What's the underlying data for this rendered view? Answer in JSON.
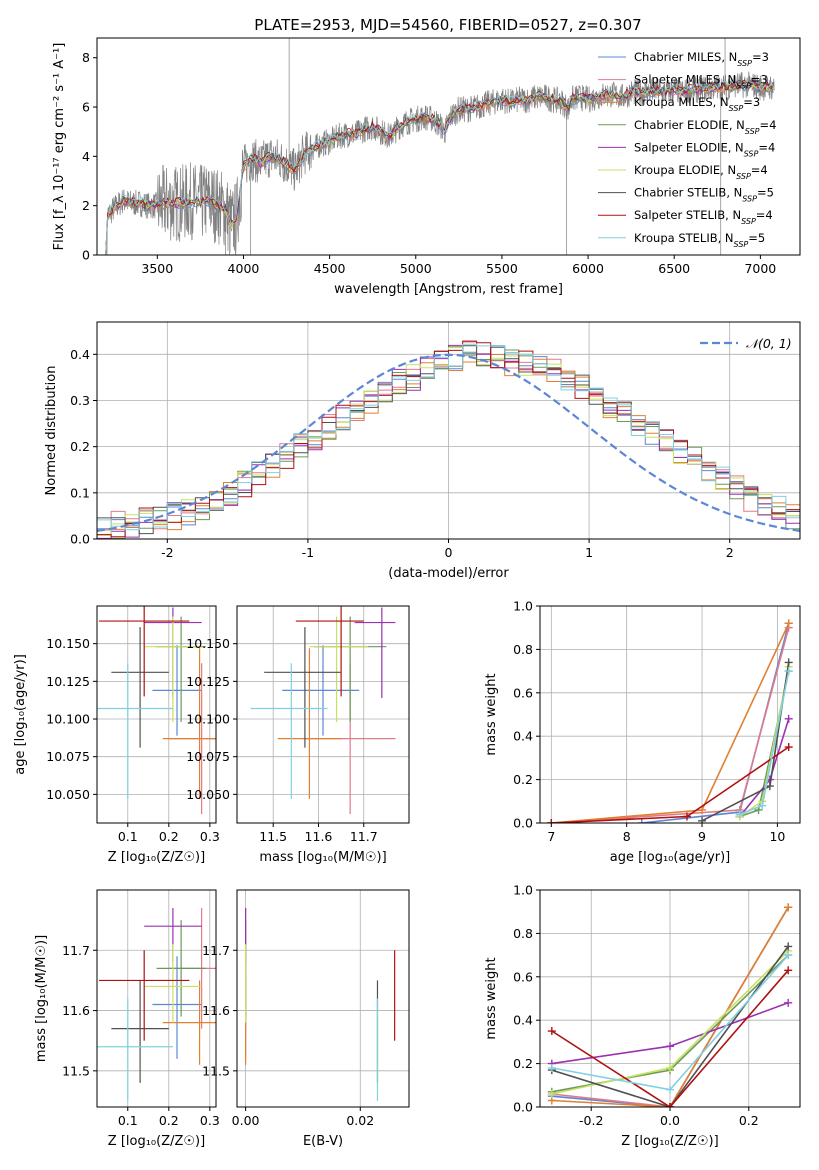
{
  "title": "PLATE=2953, MJD=54560, FIBERID=0527, z=0.307",
  "colors": {
    "Chabrier MILES": "#5b87d6",
    "Salpeter MILES": "#e07a8a",
    "Kroupa MILES": "#e08030",
    "Chabrier ELODIE": "#6a9a5a",
    "Salpeter ELODIE": "#9b30b0",
    "Kroupa ELODIE": "#c8e060",
    "Chabrier STELIB": "#505050",
    "Salpeter STELIB": "#b01010",
    "Kroupa STELIB": "#80d0e0",
    "data": "#808080",
    "normal": "#5b87d6"
  },
  "chart_data": [
    {
      "id": "spectrum",
      "type": "line",
      "xlabel": "wavelength [Angstrom, rest frame]",
      "ylabel": "Flux [f_λ 10⁻¹⁷ erg cm⁻² s⁻¹ A⁻¹]",
      "xlim": [
        3150,
        7230
      ],
      "ylim": [
        0,
        8.8
      ],
      "xticks": [
        3500,
        4000,
        4500,
        5000,
        5500,
        6000,
        6500,
        7000
      ],
      "yticks": [
        0,
        2,
        4,
        6,
        8
      ],
      "continuum": [
        [
          3200,
          0
        ],
        [
          3210,
          1.6
        ],
        [
          3250,
          1.9
        ],
        [
          3300,
          2.2
        ],
        [
          3350,
          2.1
        ],
        [
          3400,
          2.1
        ],
        [
          3450,
          2.0
        ],
        [
          3500,
          2.0
        ],
        [
          3550,
          2.1
        ],
        [
          3600,
          2.1
        ],
        [
          3650,
          2.1
        ],
        [
          3700,
          2.2
        ],
        [
          3750,
          2.1
        ],
        [
          3800,
          2.2
        ],
        [
          3850,
          2.0
        ],
        [
          3900,
          1.8
        ],
        [
          3930,
          1.2
        ],
        [
          3960,
          1.5
        ],
        [
          4000,
          3.6
        ],
        [
          4050,
          3.9
        ],
        [
          4100,
          3.7
        ],
        [
          4150,
          4.0
        ],
        [
          4200,
          3.9
        ],
        [
          4250,
          3.7
        ],
        [
          4300,
          3.4
        ],
        [
          4350,
          4.1
        ],
        [
          4400,
          4.3
        ],
        [
          4450,
          4.5
        ],
        [
          4500,
          4.6
        ],
        [
          4550,
          4.8
        ],
        [
          4600,
          4.9
        ],
        [
          4650,
          4.9
        ],
        [
          4700,
          5.1
        ],
        [
          4750,
          5.2
        ],
        [
          4800,
          5.0
        ],
        [
          4850,
          4.8
        ],
        [
          4900,
          5.2
        ],
        [
          4950,
          5.4
        ],
        [
          5000,
          5.5
        ],
        [
          5050,
          5.6
        ],
        [
          5100,
          5.5
        ],
        [
          5150,
          5.2
        ],
        [
          5170,
          5.0
        ],
        [
          5200,
          5.6
        ],
        [
          5250,
          5.9
        ],
        [
          5300,
          5.9
        ],
        [
          5350,
          6.0
        ],
        [
          5400,
          6.1
        ],
        [
          5450,
          6.2
        ],
        [
          5500,
          6.3
        ],
        [
          5550,
          6.2
        ],
        [
          5600,
          6.3
        ],
        [
          5650,
          6.3
        ],
        [
          5700,
          6.4
        ],
        [
          5750,
          6.4
        ],
        [
          5800,
          6.3
        ],
        [
          5850,
          6.2
        ],
        [
          5890,
          5.9
        ],
        [
          5900,
          6.3
        ],
        [
          5950,
          6.4
        ],
        [
          6000,
          6.3
        ],
        [
          6050,
          6.4
        ],
        [
          6100,
          6.5
        ],
        [
          6150,
          6.5
        ],
        [
          6200,
          6.4
        ],
        [
          6250,
          6.6
        ],
        [
          6300,
          6.6
        ],
        [
          6350,
          6.6
        ],
        [
          6400,
          6.7
        ],
        [
          6450,
          6.6
        ],
        [
          6500,
          6.7
        ],
        [
          6550,
          6.6
        ],
        [
          6600,
          6.7
        ],
        [
          6650,
          6.7
        ],
        [
          6700,
          6.8
        ],
        [
          6750,
          6.8
        ],
        [
          6800,
          6.8
        ],
        [
          6850,
          6.9
        ],
        [
          6900,
          6.9
        ],
        [
          6950,
          6.9
        ],
        [
          7000,
          6.8
        ],
        [
          7050,
          6.8
        ]
      ],
      "legend": [
        "Chabrier MILES, N_SSP=3",
        "Salpeter MILES, N_SSP=3",
        "Kroupa MILES, N_SSP=3",
        "Chabrier ELODIE, N_SSP=4",
        "Salpeter ELODIE, N_SSP=4",
        "Kroupa ELODIE, N_SSP=4",
        "Chabrier STELIB, N_SSP=5",
        "Salpeter STELIB, N_SSP=4",
        "Kroupa STELIB, N_SSP=5"
      ]
    },
    {
      "id": "residuals",
      "type": "line",
      "xlabel": "(data-model)/error",
      "ylabel": "Normed distribution",
      "xlim": [
        -2.5,
        2.5
      ],
      "ylim": [
        0,
        0.47
      ],
      "xticks": [
        -2,
        -1,
        0,
        1,
        2
      ],
      "yticks": [
        0.0,
        0.1,
        0.2,
        0.3,
        0.4
      ],
      "legend": "𝒩(0, 1)",
      "bin_width": 0.1,
      "base_hist": [
        0.02,
        0.03,
        0.03,
        0.04,
        0.04,
        0.05,
        0.06,
        0.07,
        0.09,
        0.1,
        0.12,
        0.14,
        0.16,
        0.18,
        0.2,
        0.22,
        0.24,
        0.26,
        0.28,
        0.3,
        0.32,
        0.34,
        0.35,
        0.37,
        0.38,
        0.39,
        0.4,
        0.4,
        0.39,
        0.38,
        0.38,
        0.37,
        0.36,
        0.34,
        0.33,
        0.31,
        0.29,
        0.27,
        0.25,
        0.23,
        0.21,
        0.19,
        0.17,
        0.15,
        0.13,
        0.11,
        0.09,
        0.08,
        0.07,
        0.05
      ]
    },
    {
      "id": "age_vs_Z",
      "type": "scatter",
      "xlabel": "Z [log₁₀(Z/Z☉)]",
      "ylabel": "age  [log₁₀(age/yr)]",
      "xlim": [
        0.025,
        0.315
      ],
      "ylim": [
        10.031,
        10.175
      ],
      "xticks": [
        0.1,
        0.2,
        0.3
      ],
      "yticks": [
        10.05,
        10.075,
        10.1,
        10.125,
        10.15
      ]
    },
    {
      "id": "age_vs_mass",
      "type": "scatter",
      "xlabel": "mass [log₁₀(M/M☉)]",
      "xlim": [
        11.42,
        11.8
      ],
      "ylim": [
        10.031,
        10.175
      ],
      "xticks": [
        11.5,
        11.6,
        11.7
      ],
      "yticks": [
        10.05,
        10.075,
        10.1,
        10.125,
        10.15
      ]
    },
    {
      "id": "massweight_vs_age",
      "type": "line",
      "xlabel": "age  [log₁₀(age/yr)]",
      "ylabel": "mass weight",
      "xlim": [
        6.85,
        10.3
      ],
      "ylim": [
        0,
        1.0
      ],
      "xticks": [
        7,
        8,
        9,
        10
      ],
      "yticks": [
        0.0,
        0.2,
        0.4,
        0.6,
        0.8,
        1.0
      ]
    },
    {
      "id": "mass_vs_Z",
      "type": "scatter",
      "xlabel": "Z [log₁₀(Z/Z☉)]",
      "ylabel": "mass [log₁₀(M/M☉)]",
      "xlim": [
        0.025,
        0.315
      ],
      "ylim": [
        11.44,
        11.8
      ],
      "xticks": [
        0.1,
        0.2,
        0.3
      ],
      "yticks": [
        11.5,
        11.6,
        11.7
      ]
    },
    {
      "id": "mass_vs_EBV",
      "type": "scatter",
      "xlabel": "E(B-V)",
      "xlim": [
        -0.0015,
        0.0285
      ],
      "ylim": [
        11.44,
        11.8
      ],
      "xticks": [
        0.0,
        0.02
      ],
      "yticks": [
        11.5,
        11.6,
        11.7
      ]
    },
    {
      "id": "massweight_vs_Z",
      "type": "line",
      "xlabel": "Z [log₁₀(Z/Z☉)]",
      "ylabel": "mass weight",
      "xlim": [
        -0.33,
        0.33
      ],
      "ylim": [
        0,
        1.0
      ],
      "xticks": [
        -0.2,
        0.0,
        0.2
      ],
      "yticks": [
        0.0,
        0.2,
        0.4,
        0.6,
        0.8,
        1.0
      ]
    }
  ],
  "fits": [
    {
      "name": "Chabrier MILES",
      "Z": 0.22,
      "Zerr": 0.06,
      "age": 10.119,
      "ageerr": [
        0.03,
        0.03
      ],
      "mass": 11.61,
      "masserr": [
        0.09,
        0.08
      ],
      "ebv": 0.0,
      "age_w": [
        [
          8.2,
          0.0
        ],
        [
          9.5,
          0.05
        ],
        [
          10.15,
          0.92
        ]
      ],
      "Z_w": [
        [
          -0.3,
          0.05
        ],
        [
          0.0,
          0.0
        ],
        [
          0.3,
          0.92
        ]
      ]
    },
    {
      "name": "Salpeter MILES",
      "Z": 0.28,
      "Zerr": 0.08,
      "age": 10.087,
      "ageerr": [
        0.05,
        0.05
      ],
      "mass": 11.67,
      "masserr": [
        0.1,
        0.1
      ],
      "ebv": 0.0,
      "age_w": [
        [
          7.0,
          0.0
        ],
        [
          9.5,
          0.06
        ],
        [
          10.15,
          0.9
        ]
      ],
      "Z_w": [
        [
          -0.3,
          0.06
        ],
        [
          0.0,
          0.0
        ],
        [
          0.3,
          0.92
        ]
      ]
    },
    {
      "name": "Kroupa MILES",
      "Z": 0.275,
      "Zerr": 0.09,
      "age": 10.087,
      "ageerr": [
        0.04,
        0.06
      ],
      "mass": 11.58,
      "masserr": [
        0.07,
        0.07
      ],
      "ebv": 0.0,
      "age_w": [
        [
          7.0,
          0.0
        ],
        [
          9.0,
          0.06
        ],
        [
          10.15,
          0.92
        ]
      ],
      "Z_w": [
        [
          -0.3,
          0.03
        ],
        [
          0.0,
          0.0
        ],
        [
          0.3,
          0.92
        ]
      ]
    },
    {
      "name": "Chabrier ELODIE",
      "Z": 0.23,
      "Zerr": 0.06,
      "age": 10.148,
      "ageerr": [
        0.05,
        0.02
      ],
      "mass": 11.67,
      "masserr": [
        0.08,
        0.08
      ],
      "ebv": 0.0,
      "age_w": [
        [
          9.5,
          0.03
        ],
        [
          9.75,
          0.06
        ],
        [
          10.15,
          0.7
        ]
      ],
      "Z_w": [
        [
          -0.3,
          0.07
        ],
        [
          0.0,
          0.17
        ],
        [
          0.3,
          0.7
        ]
      ]
    },
    {
      "name": "Salpeter ELODIE",
      "Z": 0.21,
      "Zerr": 0.07,
      "age": 10.164,
      "ageerr": [
        0.05,
        0.01
      ],
      "mass": 11.74,
      "masserr": [
        0.06,
        0.03
      ],
      "ebv": 0.0,
      "age_w": [
        [
          9.5,
          0.03
        ],
        [
          9.9,
          0.2
        ],
        [
          10.15,
          0.48
        ]
      ],
      "Z_w": [
        [
          -0.3,
          0.2
        ],
        [
          0.0,
          0.28
        ],
        [
          0.3,
          0.48
        ]
      ]
    },
    {
      "name": "Kroupa ELODIE",
      "Z": 0.21,
      "Zerr": 0.07,
      "age": 10.148,
      "ageerr": [
        0.05,
        0.02
      ],
      "mass": 11.64,
      "masserr": [
        0.06,
        0.07
      ],
      "ebv": 0.0,
      "age_w": [
        [
          9.5,
          0.03
        ],
        [
          9.8,
          0.1
        ],
        [
          10.15,
          0.72
        ]
      ],
      "Z_w": [
        [
          -0.3,
          0.06
        ],
        [
          0.0,
          0.18
        ],
        [
          0.3,
          0.72
        ]
      ]
    },
    {
      "name": "Chabrier STELIB",
      "Z": 0.13,
      "Zerr": 0.07,
      "age": 10.131,
      "ageerr": [
        0.05,
        0.03
      ],
      "mass": 11.57,
      "masserr": [
        0.09,
        0.08
      ],
      "ebv": 0.023,
      "age_w": [
        [
          9.0,
          0.01
        ],
        [
          9.9,
          0.17
        ],
        [
          10.15,
          0.74
        ]
      ],
      "Z_w": [
        [
          -0.3,
          0.17
        ],
        [
          0.0,
          0.0
        ],
        [
          0.3,
          0.74
        ]
      ]
    },
    {
      "name": "Salpeter STELIB",
      "Z": 0.14,
      "Zerr": 0.11,
      "age": 10.165,
      "ageerr": [
        0.05,
        0.01
      ],
      "mass": 11.65,
      "masserr": [
        0.1,
        0.05
      ],
      "ebv": 0.026,
      "age_w": [
        [
          7.0,
          0.0
        ],
        [
          8.8,
          0.03
        ],
        [
          10.15,
          0.35
        ]
      ],
      "Z_w": [
        [
          -0.3,
          0.35
        ],
        [
          0.0,
          0.0
        ],
        [
          0.3,
          0.63
        ]
      ]
    },
    {
      "name": "Kroupa STELIB",
      "Z": 0.1,
      "Zerr": 0.11,
      "age": 10.107,
      "ageerr": [
        0.06,
        0.03
      ],
      "mass": 11.54,
      "masserr": [
        0.09,
        0.08
      ],
      "ebv": 0.023,
      "age_w": [
        [
          9.5,
          0.04
        ],
        [
          9.8,
          0.08
        ],
        [
          10.15,
          0.7
        ]
      ],
      "Z_w": [
        [
          -0.3,
          0.18
        ],
        [
          0.0,
          0.08
        ],
        [
          0.3,
          0.7
        ]
      ]
    }
  ]
}
